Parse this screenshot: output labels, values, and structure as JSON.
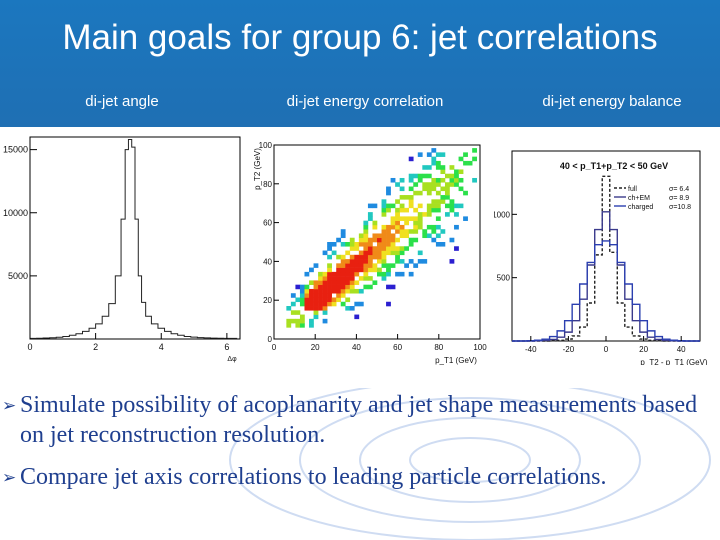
{
  "slide": {
    "title": "Main goals for group 6: jet correlations",
    "panel_titles": [
      "di-jet angle",
      "di-jet energy correlation",
      "di-jet energy balance"
    ],
    "bullets": [
      "Simulate possibility of acoplanarity and jet shape measurements based on jet reconstruction resolution.",
      "Compare jet axis correlations to leading particle correlations."
    ],
    "colors": {
      "header": "#1f72b8",
      "bullet_text": "#1f3f8f"
    },
    "icons": {
      "bullet": "arrow-bullet-icon"
    }
  },
  "chart_data": [
    {
      "type": "bar",
      "title": "",
      "xlabel": "Δφ",
      "ylabel": "",
      "xlim": [
        0,
        6.4
      ],
      "ylim": [
        0,
        16000
      ],
      "xticks": [
        "0",
        "2",
        "4",
        "6"
      ],
      "yticks": [
        "5000",
        "10000",
        "15000"
      ],
      "x": [
        0.1,
        0.3,
        0.5,
        0.7,
        0.9,
        1.1,
        1.3,
        1.5,
        1.7,
        1.9,
        2.1,
        2.3,
        2.5,
        2.7,
        2.85,
        2.95,
        3.05,
        3.15,
        3.25,
        3.35,
        3.45,
        3.6,
        3.8,
        4.0,
        4.2,
        4.4,
        4.6,
        4.8,
        5.0,
        5.2,
        5.4,
        5.6,
        5.8,
        6.0,
        6.2
      ],
      "values": [
        50,
        60,
        80,
        100,
        140,
        200,
        300,
        420,
        600,
        850,
        1200,
        1800,
        2800,
        5000,
        9500,
        15000,
        15800,
        15200,
        9500,
        5000,
        2900,
        1800,
        1200,
        850,
        600,
        420,
        300,
        200,
        150,
        110,
        90,
        70,
        60,
        50,
        45
      ]
    },
    {
      "type": "heatmap",
      "title": "",
      "xlabel": "p_T1 (GeV)",
      "ylabel": "p_T2 (GeV)",
      "xlim": [
        0,
        100
      ],
      "ylim": [
        0,
        100
      ],
      "xticks": [
        "0",
        "20",
        "40",
        "60",
        "80",
        "100"
      ],
      "yticks": [
        "0",
        "20",
        "40",
        "60",
        "80",
        "100"
      ],
      "grid": false
    },
    {
      "type": "line",
      "title": "40 < p_T1+p_T2 < 50 GeV",
      "xlabel": "p_T2 - p_T1 (GeV)",
      "ylabel": "",
      "xlim": [
        -50,
        50
      ],
      "ylim": [
        0,
        1500
      ],
      "xticks": [
        "-40",
        "-20",
        "0",
        "20",
        "40"
      ],
      "yticks": [
        "500",
        "1000"
      ],
      "legend": "top-right",
      "x": [
        -48,
        -44,
        -40,
        -36,
        -32,
        -28,
        -24,
        -20,
        -16,
        -12,
        -8,
        -4,
        0,
        4,
        8,
        12,
        16,
        20,
        24,
        28,
        32,
        36,
        40,
        44,
        48
      ],
      "series": [
        {
          "name": "full",
          "sigma": "σ= 6.4",
          "color": "#222222",
          "dash": true,
          "values": [
            0,
            0,
            0,
            0,
            0,
            2,
            5,
            15,
            40,
            110,
            300,
            680,
            1300,
            700,
            300,
            110,
            40,
            15,
            5,
            2,
            0,
            0,
            0,
            0,
            0
          ]
        },
        {
          "name": "ch+EM",
          "sigma": "σ= 8.9",
          "color": "#3a3a8c",
          "values": [
            0,
            0,
            0,
            2,
            5,
            12,
            30,
            70,
            160,
            330,
            600,
            880,
            1020,
            880,
            600,
            330,
            160,
            70,
            30,
            12,
            5,
            2,
            0,
            0,
            0
          ]
        },
        {
          "name": "charged",
          "sigma": "σ=10.8",
          "color": "#2b3fb0",
          "values": [
            0,
            0,
            2,
            6,
            14,
            35,
            80,
            160,
            290,
            450,
            620,
            760,
            790,
            760,
            620,
            450,
            290,
            160,
            80,
            35,
            14,
            6,
            2,
            0,
            0
          ]
        }
      ]
    }
  ]
}
